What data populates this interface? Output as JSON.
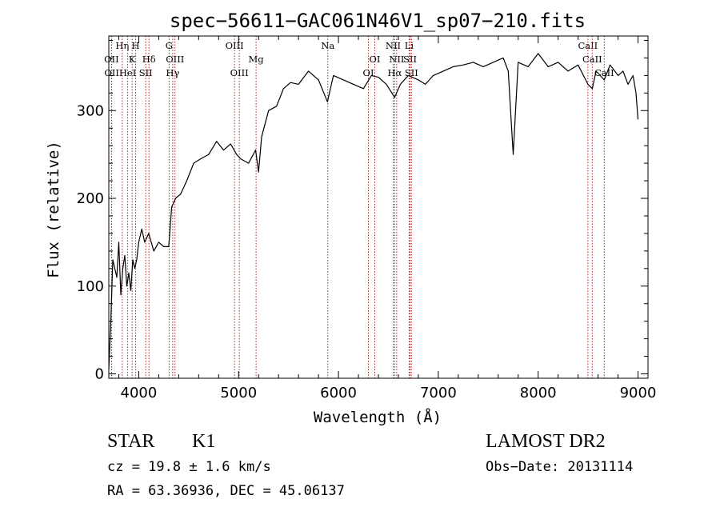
{
  "chart_data": {
    "type": "line",
    "title": "spec−56611−GAC061N46V1_sp07−210.fits",
    "xlabel": "Wavelength (Å)",
    "ylabel": "Flux (relative)",
    "xlim": [
      3700,
      9100
    ],
    "ylim": [
      -5,
      385
    ],
    "xticks": [
      4000,
      5000,
      6000,
      7000,
      8000,
      9000
    ],
    "yticks": [
      0,
      100,
      200,
      300
    ],
    "series": [
      {
        "name": "flux",
        "x": [
          3700,
          3720,
          3740,
          3760,
          3780,
          3800,
          3820,
          3840,
          3860,
          3880,
          3900,
          3920,
          3940,
          3960,
          3980,
          4000,
          4030,
          4060,
          4100,
          4150,
          4200,
          4250,
          4300,
          4330,
          4370,
          4420,
          4480,
          4550,
          4620,
          4700,
          4780,
          4850,
          4920,
          4980,
          5020,
          5100,
          5170,
          5200,
          5230,
          5300,
          5380,
          5450,
          5520,
          5600,
          5700,
          5800,
          5890,
          5950,
          6050,
          6150,
          6250,
          6330,
          6400,
          6480,
          6563,
          6620,
          6700,
          6800,
          6870,
          6950,
          7050,
          7150,
          7250,
          7350,
          7450,
          7550,
          7650,
          7700,
          7750,
          7800,
          7900,
          8000,
          8100,
          8200,
          8300,
          8400,
          8498,
          8542,
          8580,
          8662,
          8720,
          8800,
          8850,
          8900,
          8950,
          8980,
          9000
        ],
        "values": [
          5,
          60,
          130,
          120,
          110,
          150,
          90,
          120,
          135,
          100,
          115,
          95,
          130,
          120,
          130,
          150,
          165,
          150,
          160,
          140,
          150,
          145,
          145,
          190,
          200,
          205,
          220,
          240,
          245,
          250,
          265,
          255,
          262,
          250,
          245,
          240,
          255,
          230,
          270,
          300,
          305,
          325,
          332,
          330,
          345,
          335,
          310,
          340,
          335,
          330,
          325,
          340,
          338,
          330,
          315,
          330,
          340,
          335,
          330,
          340,
          345,
          350,
          352,
          355,
          350,
          355,
          360,
          345,
          250,
          355,
          350,
          365,
          350,
          355,
          345,
          352,
          330,
          325,
          345,
          335,
          352,
          340,
          345,
          330,
          340,
          320,
          290
        ]
      }
    ],
    "line_markers": [
      {
        "label": "Hη",
        "wavelength": 3835,
        "row": 1
      },
      {
        "label": "H",
        "wavelength": 3969,
        "row": 1
      },
      {
        "label": "G",
        "wavelength": 4304,
        "row": 1
      },
      {
        "label": "OIII",
        "wavelength": 4959,
        "row": 1
      },
      {
        "label": "Na",
        "wavelength": 5893,
        "row": 1
      },
      {
        "label": "NII",
        "wavelength": 6548,
        "row": 1
      },
      {
        "label": "Li",
        "wavelength": 6708,
        "row": 1
      },
      {
        "label": "CaII",
        "wavelength": 8498,
        "row": 1
      },
      {
        "label": "OII",
        "wavelength": 3727,
        "row": 2
      },
      {
        "label": "K",
        "wavelength": 3934,
        "row": 2
      },
      {
        "label": "Hδ",
        "wavelength": 4102,
        "row": 2
      },
      {
        "label": "OIII",
        "wavelength": 4363,
        "row": 2
      },
      {
        "label": "Mg",
        "wavelength": 5175,
        "row": 2
      },
      {
        "label": "OI",
        "wavelength": 6364,
        "row": 2
      },
      {
        "label": "NII",
        "wavelength": 6583,
        "row": 2
      },
      {
        "label": "SII",
        "wavelength": 6717,
        "row": 2
      },
      {
        "label": "CaII",
        "wavelength": 8542,
        "row": 2
      },
      {
        "label": "OII",
        "wavelength": 3729,
        "row": 3
      },
      {
        "label": "HeI",
        "wavelength": 3889,
        "row": 3
      },
      {
        "label": "SII",
        "wavelength": 4070,
        "row": 3
      },
      {
        "label": "Hγ",
        "wavelength": 4340,
        "row": 3
      },
      {
        "label": "OIII",
        "wavelength": 5007,
        "row": 3
      },
      {
        "label": "OI",
        "wavelength": 6300,
        "row": 3
      },
      {
        "label": "Hα",
        "wavelength": 6563,
        "row": 3
      },
      {
        "label": "SII",
        "wavelength": 6731,
        "row": 3
      },
      {
        "label": "CaII",
        "wavelength": 8662,
        "row": 3
      }
    ]
  },
  "info": {
    "class": "STAR",
    "subclass": "K1",
    "survey": "LAMOST DR2",
    "redshift": "cz = 19.8 ± 1.6 km/s",
    "obs_date": "Obs−Date: 20131114",
    "coords": "RA =  63.36936, DEC =  45.06137"
  },
  "colors": {
    "line_marker": "#b22222",
    "spectrum": "#000000"
  }
}
